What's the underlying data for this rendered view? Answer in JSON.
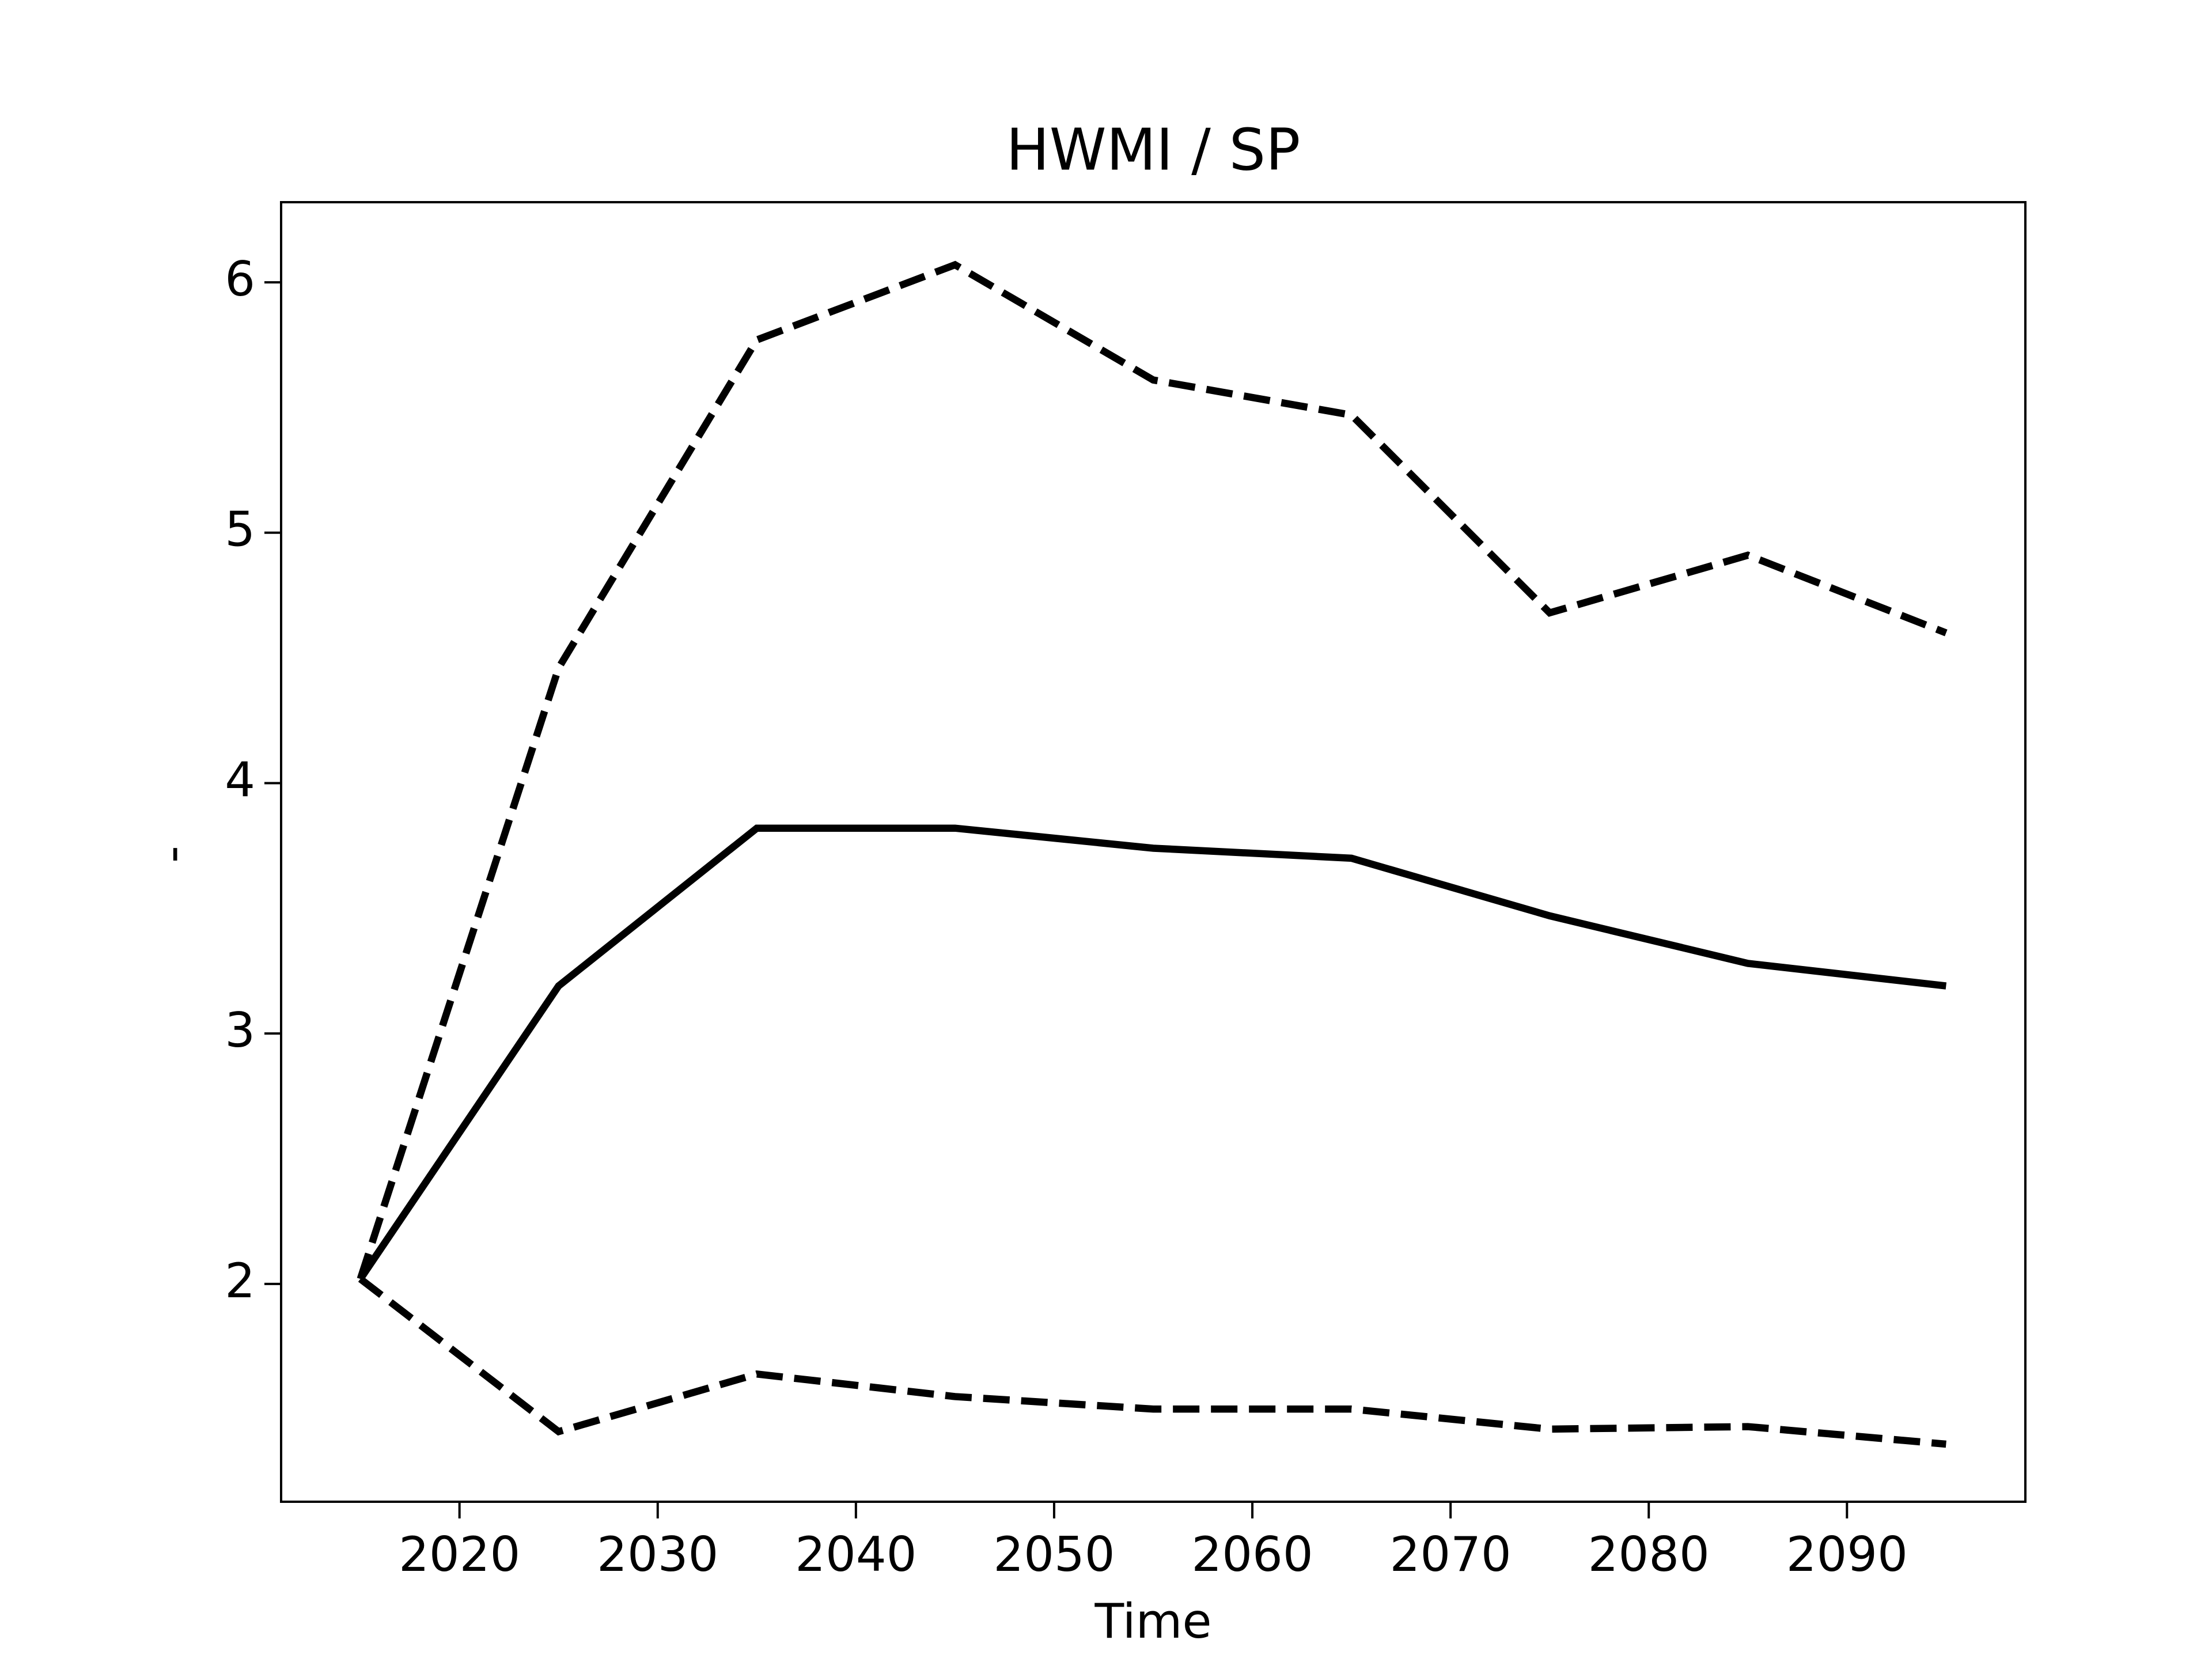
{
  "chart_data": {
    "type": "line",
    "title": "HWMI / SP",
    "xlabel": "Time",
    "ylabel": "-",
    "x": [
      2015,
      2025,
      2035,
      2045,
      2055,
      2065,
      2075,
      2085,
      2095
    ],
    "series": [
      {
        "color": "#000000",
        "dashed": false,
        "values": [
          2.02,
          3.19,
          3.82,
          3.82,
          3.74,
          3.7,
          3.47,
          3.28,
          3.19
        ]
      },
      {
        "color": "#000000",
        "dashed": true,
        "values": [
          2.02,
          4.46,
          5.77,
          6.07,
          5.61,
          5.47,
          4.68,
          4.91,
          4.6
        ]
      },
      {
        "color": "#000000",
        "dashed": true,
        "values": [
          2.02,
          1.41,
          1.64,
          1.55,
          1.5,
          1.5,
          1.42,
          1.43,
          1.36
        ]
      }
    ],
    "xlim": [
      2011,
      2099
    ],
    "xticks": [
      2020,
      2030,
      2040,
      2050,
      2060,
      2070,
      2080,
      2090
    ],
    "ylim": [
      1.13,
      6.32
    ],
    "yticks": [
      2,
      3,
      4,
      5,
      6
    ],
    "grid": false
  }
}
